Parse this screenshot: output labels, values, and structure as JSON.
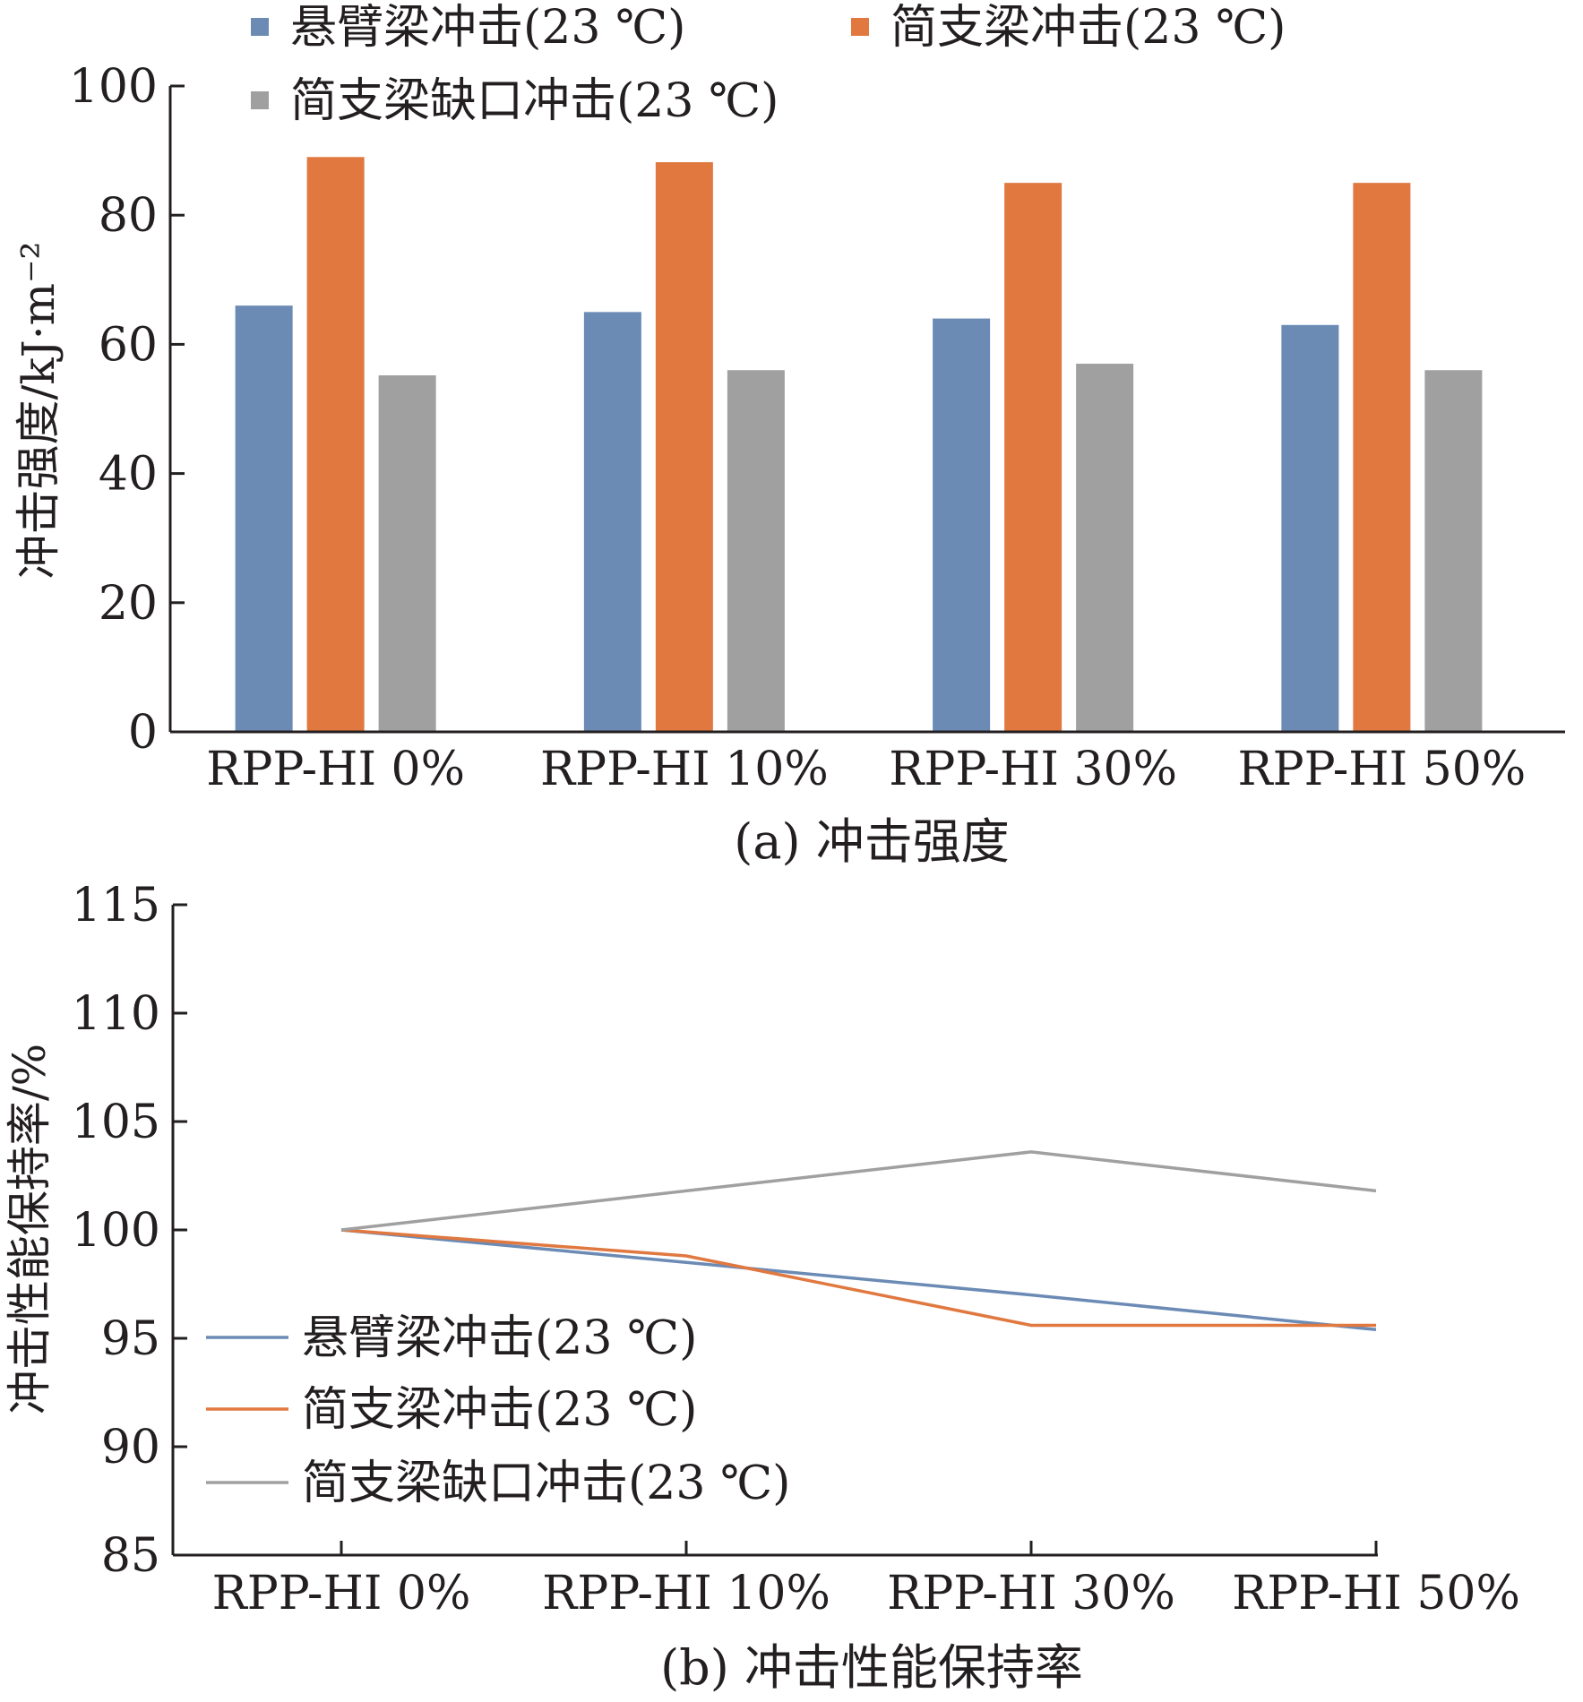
{
  "chart_data": [
    {
      "type": "bar",
      "caption": "(a) 冲击强度",
      "ylabel": "冲击强度/kJ·m⁻²",
      "categories": [
        "RPP-HI 0%",
        "RPP-HI 10%",
        "RPP-HI 30%",
        "RPP-HI 50%"
      ],
      "ylim": [
        0,
        100
      ],
      "yticks": [
        "0",
        "20",
        "40",
        "60",
        "80",
        "100"
      ],
      "legend_position": "top",
      "series": [
        {
          "name": "悬臂梁冲击(23 ℃)",
          "color": "#6b8bb5",
          "values": [
            66,
            65,
            64,
            63
          ]
        },
        {
          "name": "简支梁冲击(23 ℃)",
          "color": "#e07840",
          "values": [
            89,
            88.2,
            85,
            85
          ]
        },
        {
          "name": "简支梁缺口冲击(23 ℃)",
          "color": "#a0a0a0",
          "values": [
            55.2,
            56,
            57,
            56
          ]
        }
      ]
    },
    {
      "type": "line",
      "caption": "(b) 冲击性能保持率",
      "ylabel": "冲击性能保持率/%",
      "categories": [
        "RPP-HI 0%",
        "RPP-HI 10%",
        "RPP-HI 30%",
        "RPP-HI 50%"
      ],
      "ylim": [
        85,
        115
      ],
      "yticks": [
        "85",
        "90",
        "95",
        "100",
        "105",
        "110",
        "115"
      ],
      "legend_position": "bottom-left",
      "series": [
        {
          "name": "悬臂梁冲击(23 ℃)",
          "color": "#6b8bb5",
          "values": [
            100,
            98.5,
            97,
            95.4
          ]
        },
        {
          "name": "简支梁冲击(23 ℃)",
          "color": "#e07840",
          "values": [
            100,
            98.8,
            95.6,
            95.6
          ]
        },
        {
          "name": "简支梁缺口冲击(23 ℃)",
          "color": "#a0a0a0",
          "values": [
            100,
            101.8,
            103.6,
            101.8
          ]
        }
      ]
    }
  ]
}
